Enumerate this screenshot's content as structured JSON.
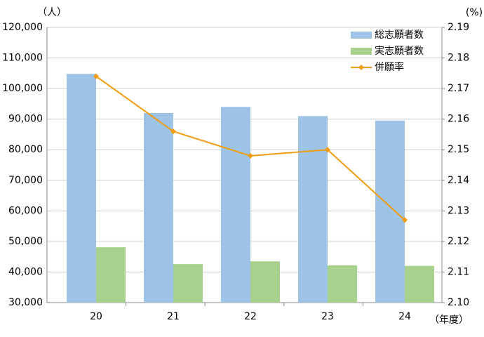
{
  "chart_data": {
    "type": "bar-line",
    "y_unit": "（人）",
    "y2_unit": "(%)",
    "x_unit": "（年度）",
    "categories": [
      "20",
      "21",
      "22",
      "23",
      "24"
    ],
    "series": [
      {
        "name": "総志願者数",
        "type": "bar",
        "color": "#9dc3e6",
        "values": [
          104800,
          92000,
          94000,
          91000,
          89500
        ]
      },
      {
        "name": "実志願者数",
        "type": "bar",
        "color": "#a9d18e",
        "values": [
          48100,
          42600,
          43500,
          42200,
          42000
        ]
      },
      {
        "name": "併願率",
        "type": "line",
        "axis": "y2",
        "color": "#f39c12",
        "values": [
          2.174,
          2.156,
          2.148,
          2.15,
          2.127
        ]
      }
    ],
    "ylim": [
      30000,
      120000
    ],
    "yticks": [
      {
        "value": 30000,
        "label": "30,000"
      },
      {
        "value": 40000,
        "label": "40,000"
      },
      {
        "value": 50000,
        "label": "50,000"
      },
      {
        "value": 60000,
        "label": "60,000"
      },
      {
        "value": 70000,
        "label": "70,000"
      },
      {
        "value": 80000,
        "label": "80,000"
      },
      {
        "value": 90000,
        "label": "90,000"
      },
      {
        "value": 100000,
        "label": "100,000"
      },
      {
        "value": 110000,
        "label": "110,000"
      },
      {
        "value": 120000,
        "label": "120,000"
      }
    ],
    "y2lim": [
      2.1,
      2.19
    ],
    "y2ticks": [
      {
        "value": 2.1,
        "label": "2.10"
      },
      2.11,
      2.12,
      2.13,
      2.14,
      2.15,
      2.16,
      2.17,
      2.18,
      2.19
    ],
    "grid": true
  }
}
